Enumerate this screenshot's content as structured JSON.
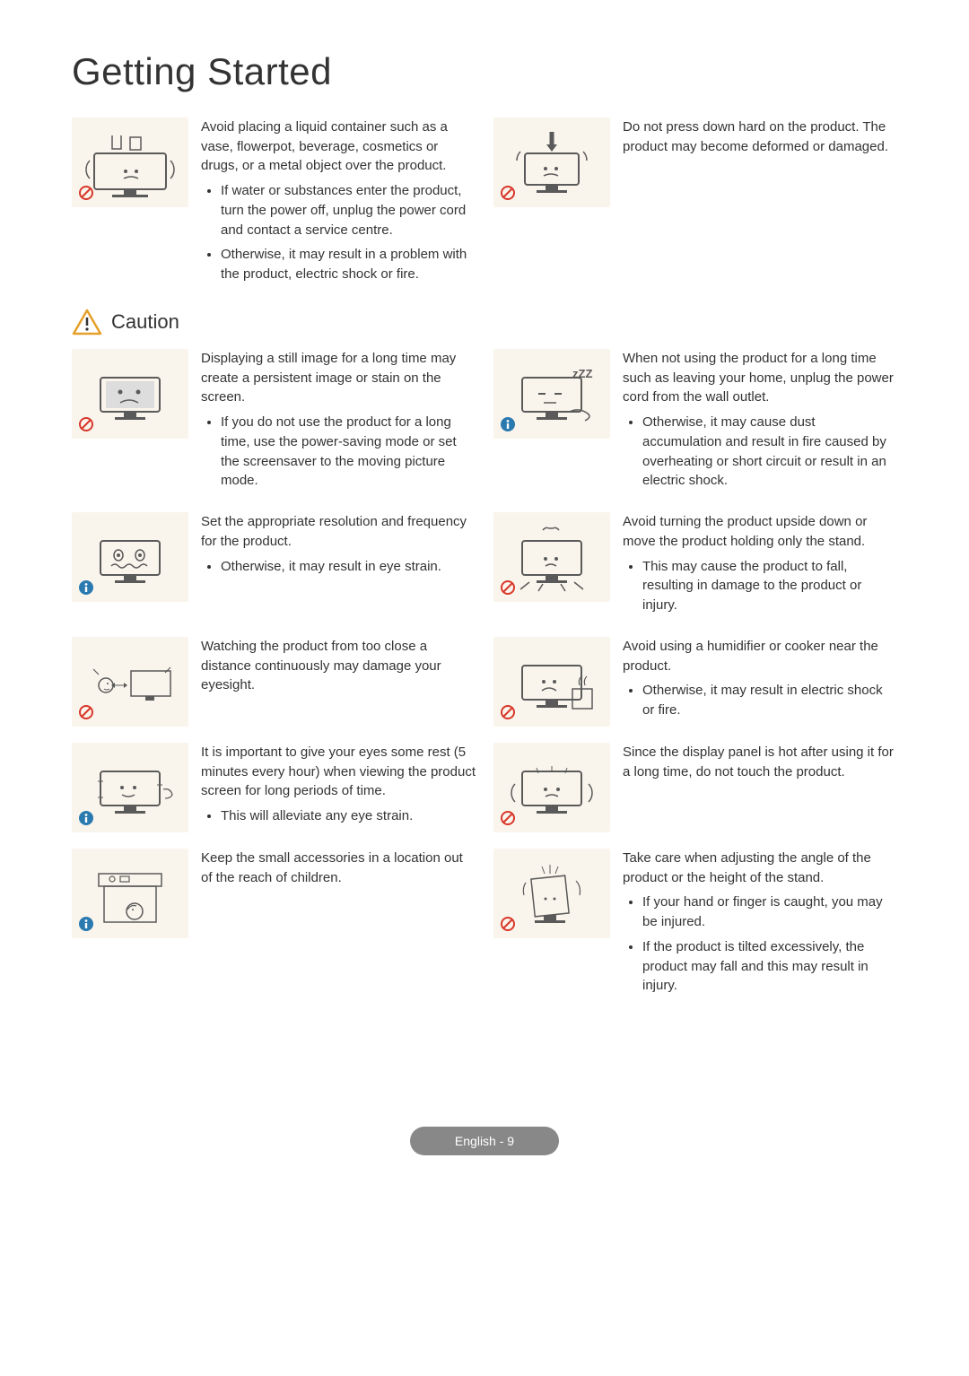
{
  "title": "Getting Started",
  "caution_label": "Caution",
  "footer": "English - 9",
  "colors": {
    "thumb_bg": "#faf5ec",
    "prohibit_stroke": "#d9372b",
    "info_fill": "#2a7ab0",
    "caution_stroke": "#e5a02a",
    "line": "#5a5a5a"
  },
  "top": {
    "left": {
      "main": "Avoid placing a liquid container such as a vase, flowerpot, beverage, cosmetics or drugs, or a metal object over the product.",
      "bullets": [
        "If water or substances enter the product, turn the power off, unplug the power cord and contact a service centre.",
        "Otherwise, it may result in a problem with the product, electric shock or fire."
      ]
    },
    "right": {
      "main": "Do not press down hard on the product. The product may become deformed or damaged."
    }
  },
  "rows": [
    {
      "left": {
        "badge": "prohibit",
        "main": "Displaying a still image for a long time may create a persistent image or stain on the screen.",
        "bullets": [
          "If you do not use the product for a long time, use the power-saving mode or set the screensaver to the moving picture mode."
        ]
      },
      "right": {
        "badge": "info",
        "main": "When not using the product for a long time such as leaving your home, unplug the power cord from the wall outlet.",
        "bullets": [
          "Otherwise, it may cause dust accumulation and result in fire caused by overheating or short circuit or result in an electric shock."
        ]
      }
    },
    {
      "left": {
        "badge": "info",
        "main": "Set the appropriate resolution and frequency for the product.",
        "bullets": [
          "Otherwise, it may result in eye strain."
        ]
      },
      "right": {
        "badge": "prohibit",
        "main": "Avoid turning the product upside down or move the product holding only the stand.",
        "bullets": [
          "This may cause the product to fall, resulting in damage to the product or injury."
        ]
      }
    },
    {
      "left": {
        "badge": "prohibit",
        "main": "Watching the product from too close a distance continuously may damage your eyesight."
      },
      "right": {
        "badge": "prohibit",
        "main": "Avoid using a humidifier or cooker near the product.",
        "bullets": [
          "Otherwise, it may result in electric shock or fire."
        ]
      }
    },
    {
      "left": {
        "badge": "info",
        "main": "It is important to give your eyes some rest (5 minutes every hour) when viewing the product screen for long periods of time.",
        "bullets": [
          "This will alleviate any eye strain."
        ]
      },
      "right": {
        "badge": "prohibit",
        "main": "Since the display panel is hot after using it for a long time, do not touch the product."
      }
    },
    {
      "left": {
        "badge": "info",
        "main": "Keep the small accessories in a location out of the reach of children."
      },
      "right": {
        "badge": "prohibit",
        "main": "Take care when adjusting the angle of the product or the height of the stand.",
        "bullets": [
          "If your hand or finger is caught, you may be injured.",
          "If the product is tilted excessively, the product may fall and this may result in injury."
        ]
      }
    }
  ]
}
